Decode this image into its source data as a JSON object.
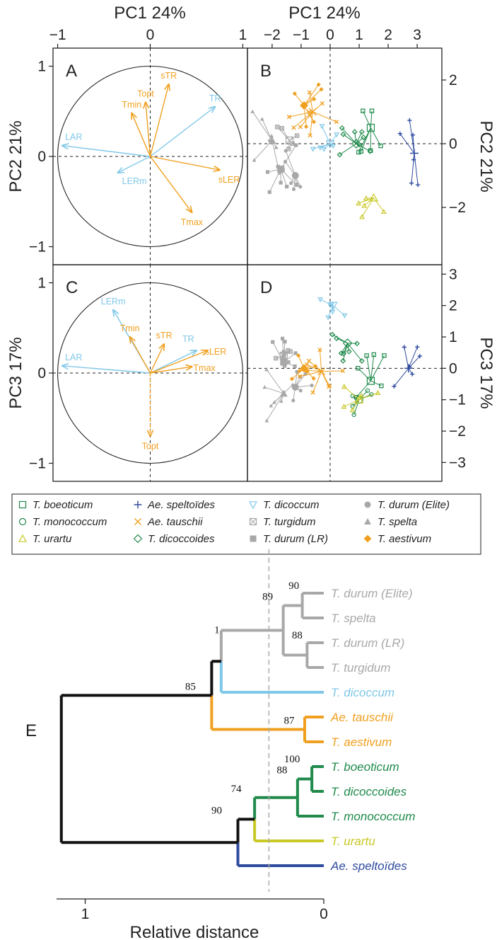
{
  "figure": {
    "colors": {
      "T. boeoticum": "#1f8a4c",
      "T. monococcum": "#1f8a4c",
      "T. dicoccoides": "#1f8a4c",
      "T. urartu": "#c8c826",
      "Ae. speltoides": "#2e4a9e",
      "Ae. tauschii": "#f0a020",
      "T. aestivum": "#f0a020",
      "T. dicoccum": "#80c8e8",
      "T. turgidum": "#a8a8a8",
      "T. durum (LR)": "#a8a8a8",
      "T. durum (Elite)": "#a8a8a8",
      "T. spelta": "#a8a8a8",
      "trait_env": "#f0a020",
      "trait_growth": "#80c8e8",
      "tree_root": "#111111"
    }
  },
  "chart_data": [
    {
      "id": "A",
      "type": "correlation-circle",
      "panel_label": "A",
      "xlabel": "PC1 24%",
      "ylabel": "PC2 21%",
      "xlim": [
        -1.05,
        1.05
      ],
      "ylim": [
        -1.2,
        1.2
      ],
      "xticks": [
        -1,
        0,
        1
      ],
      "yticks": [
        -1,
        0,
        1
      ],
      "vectors": [
        {
          "label": "LAR",
          "x": -0.95,
          "y": 0.12,
          "group": "trait_growth"
        },
        {
          "label": "LERm",
          "x": -0.35,
          "y": -0.18,
          "group": "trait_growth"
        },
        {
          "label": "TR",
          "x": 0.7,
          "y": 0.55,
          "group": "trait_growth"
        },
        {
          "label": "Tmin",
          "x": -0.2,
          "y": 0.48,
          "group": "trait_env"
        },
        {
          "label": "Topt",
          "x": -0.05,
          "y": 0.6,
          "group": "trait_env"
        },
        {
          "label": "sTR",
          "x": 0.2,
          "y": 0.8,
          "group": "trait_env"
        },
        {
          "label": "sLER",
          "x": 0.75,
          "y": -0.15,
          "group": "trait_env"
        },
        {
          "label": "Tmax",
          "x": 0.45,
          "y": -0.62,
          "group": "trait_env"
        }
      ]
    },
    {
      "id": "B",
      "type": "scatter",
      "panel_label": "B",
      "xlabel": "PC1 24%",
      "ylabel": "PC2 21%",
      "xlim": [
        -2.85,
        3.85
      ],
      "ylim": [
        -3.8,
        3.0
      ],
      "xticks": [
        -2,
        -1,
        0,
        1,
        2,
        3
      ],
      "yticks": [
        -2,
        0,
        2
      ]
    },
    {
      "id": "C",
      "type": "correlation-circle",
      "panel_label": "C",
      "xlabel": "PC1 24%",
      "ylabel": "PC3 17%",
      "xlim": [
        -1.05,
        1.05
      ],
      "ylim": [
        -1.2,
        1.2
      ],
      "xticks": [
        -1,
        0,
        1
      ],
      "yticks": [
        -1,
        0,
        1
      ],
      "vectors": [
        {
          "label": "LAR",
          "x": -0.95,
          "y": 0.08,
          "group": "trait_growth"
        },
        {
          "label": "LERm",
          "x": -0.4,
          "y": 0.7,
          "group": "trait_growth"
        },
        {
          "label": "TR",
          "x": 0.5,
          "y": 0.25,
          "group": "trait_growth"
        },
        {
          "label": "Tmin",
          "x": -0.22,
          "y": 0.4,
          "group": "trait_env"
        },
        {
          "label": "sTR",
          "x": 0.15,
          "y": 0.32,
          "group": "trait_env"
        },
        {
          "label": "sLER",
          "x": 0.62,
          "y": 0.25,
          "group": "trait_env"
        },
        {
          "label": "Tmax",
          "x": 0.45,
          "y": 0.07,
          "group": "trait_env"
        },
        {
          "label": "Topt",
          "x": 0.0,
          "y": -0.7,
          "group": "trait_env"
        }
      ]
    },
    {
      "id": "D",
      "type": "scatter",
      "panel_label": "D",
      "xlabel": "PC1 24%",
      "ylabel": "PC3 17%",
      "xlim": [
        -2.85,
        3.85
      ],
      "ylim": [
        -3.6,
        3.3
      ],
      "xticks": [
        -2,
        -1,
        0,
        1,
        2,
        3
      ],
      "yticks": [
        -3,
        -2,
        -1,
        0,
        1,
        2,
        3
      ]
    },
    {
      "id": "legend",
      "type": "legend",
      "entries": [
        {
          "label": "T. boeoticum",
          "marker": "square-open",
          "color": "#1f8a4c"
        },
        {
          "label": "T. monococcum",
          "marker": "circle-open",
          "color": "#1f8a4c"
        },
        {
          "label": "T. urartu",
          "marker": "triangle-open",
          "color": "#c8c826"
        },
        {
          "label": "Ae. speltoïdes",
          "marker": "plus",
          "color": "#2e4a9e"
        },
        {
          "label": "Ae. tauschii",
          "marker": "cross",
          "color": "#f0a020"
        },
        {
          "label": "T. dicoccoides",
          "marker": "diamond-open",
          "color": "#1f8a4c"
        },
        {
          "label": "T. dicoccum",
          "marker": "triangle-down-open",
          "color": "#80c8e8"
        },
        {
          "label": "T. turgidum",
          "marker": "square-cross",
          "color": "#a8a8a8"
        },
        {
          "label": "T. durum (LR)",
          "marker": "square-filled",
          "color": "#a8a8a8"
        },
        {
          "label": "T. durum (Elite)",
          "marker": "circle-filled",
          "color": "#a8a8a8"
        },
        {
          "label": "T. spelta",
          "marker": "triangle-filled",
          "color": "#a8a8a8"
        },
        {
          "label": "T. aestivum",
          "marker": "diamond-filled",
          "color": "#f0a020"
        }
      ]
    },
    {
      "id": "E",
      "type": "dendrogram",
      "panel_label": "E",
      "xlabel": "Relative distance",
      "xlim": [
        1.12,
        0.0
      ],
      "xticks": [
        1,
        0
      ],
      "cut_line": 0.23,
      "leaves": [
        {
          "label": "T. durum (Elite)",
          "color": "#a8a8a8"
        },
        {
          "label": "T. spelta",
          "color": "#a8a8a8"
        },
        {
          "label": "T. durum (LR)",
          "color": "#a8a8a8"
        },
        {
          "label": "T. turgidum",
          "color": "#a8a8a8"
        },
        {
          "label": "T. dicoccum",
          "color": "#80c8e8"
        },
        {
          "label": "Ae. tauschii",
          "color": "#f0a020"
        },
        {
          "label": "T. aestivum",
          "color": "#f0a020"
        },
        {
          "label": "T. boeoticum",
          "color": "#1f8a4c"
        },
        {
          "label": "T. dicoccoides",
          "color": "#1f8a4c"
        },
        {
          "label": "T. monococcum",
          "color": "#1f8a4c"
        },
        {
          "label": "T. urartu",
          "color": "#c8c826"
        },
        {
          "label": "Ae. speltoïdes",
          "color": "#2e4a9e"
        }
      ],
      "bootstrap": [
        "90",
        "88",
        "89",
        "1",
        "87",
        "85",
        "100",
        "88",
        "74",
        "90"
      ]
    }
  ]
}
